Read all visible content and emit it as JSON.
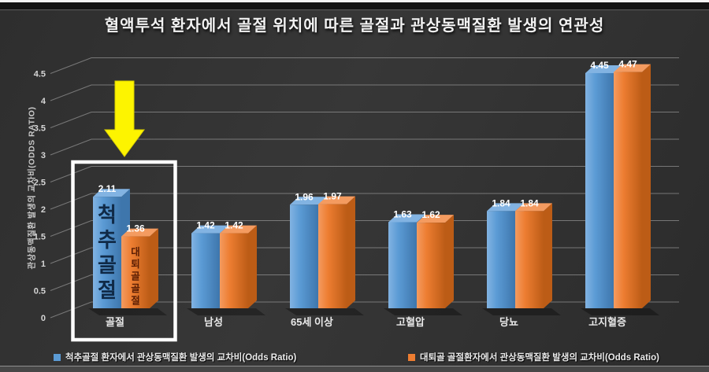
{
  "title": "혈액투석 환자에서 골절 위치에 따른 골절과 관상동맥질환 발생의 연관성",
  "y_axis": {
    "label": "관상동맥질환 발생의 교차비(ODDS RATIO)",
    "ticks": [
      "0",
      "0.5",
      "1",
      "1.5",
      "2",
      "2.5",
      "3",
      "3.5",
      "4",
      "4.5"
    ]
  },
  "chart_data": {
    "type": "bar",
    "style": "3d-clustered-column",
    "categories": [
      "골절",
      "남성",
      "65세 이상",
      "고혈압",
      "당뇨",
      "고지혈증"
    ],
    "series": [
      {
        "name": "척추골절 환자에서 관상동맥질환 발생의 교차비(Odds Ratio)",
        "color": "#5B9BD5",
        "color_top": "#82B3E2",
        "color_side": "#3E76AC",
        "values": [
          2.11,
          1.42,
          1.96,
          1.63,
          1.84,
          4.45
        ]
      },
      {
        "name": "대퇴골 골절환자에서 관상동맥질환 발생의 교차비(Odds Ratio)",
        "color": "#ED7D31",
        "color_top": "#F49B60",
        "color_side": "#BC5C16",
        "values": [
          1.36,
          1.42,
          1.97,
          1.62,
          1.84,
          4.47
        ]
      }
    ],
    "ylim": [
      0,
      4.5
    ],
    "ytick_step": 0.5,
    "grid": true,
    "legend_position": "bottom",
    "bar_text_annotations": [
      {
        "series": 0,
        "category": "골절",
        "text": "척추골절",
        "text_color": "#102a47"
      },
      {
        "series": 1,
        "category": "골절",
        "text": "대퇴골골절",
        "text_color": "#5a1d04"
      }
    ],
    "highlight": {
      "category": "골절",
      "box_color": "#FFFFFF",
      "arrow": "yellow-down-arrow",
      "arrow_color": "#FDF400"
    }
  },
  "legend": {
    "items": [
      {
        "label": "척추골절 환자에서 관상동맥질환 발생의 교차비(Odds Ratio)",
        "color": "#5B9BD5"
      },
      {
        "label": "대퇴골 골절환자에서 관상동맥질환 발생의 교차비(Odds Ratio)",
        "color": "#ED7D31"
      }
    ]
  },
  "colors": {
    "grid_line": "#9e9e9e",
    "tick_text": "#d6d6d6",
    "value_label": "#ffffff",
    "category_label": "#e8e8e8"
  }
}
